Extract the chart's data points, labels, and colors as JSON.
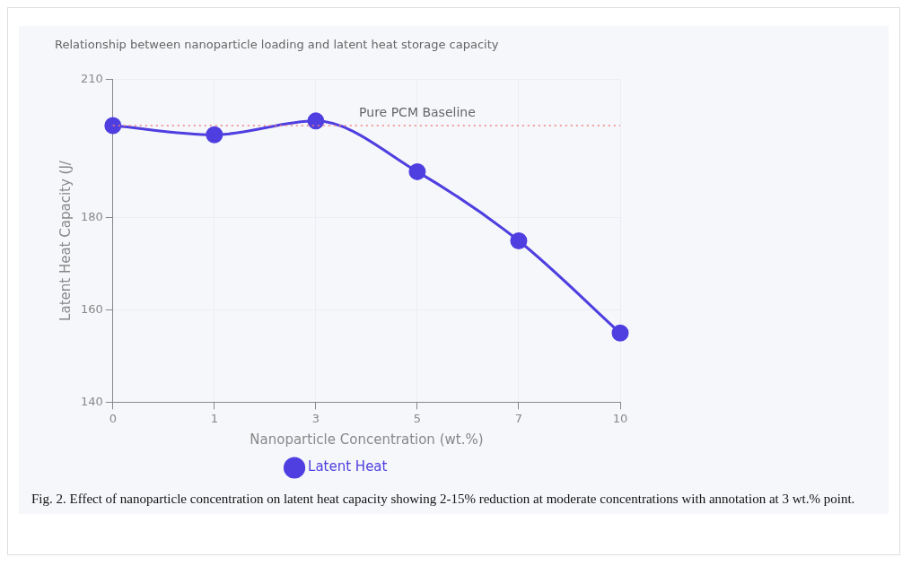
{
  "chart_data": {
    "type": "line",
    "title": "Relationship between nanoparticle loading and latent heat storage capacity",
    "xlabel": "Nanoparticle Concentration (wt.%)",
    "ylabel": "Latent Heat Capacity (J/",
    "categories": [
      "0",
      "1",
      "3",
      "5",
      "7",
      "10"
    ],
    "series": [
      {
        "name": "Latent Heat",
        "color": "#4f3ee0",
        "values": [
          200,
          198,
          201,
          190,
          175,
          155
        ]
      }
    ],
    "ylim": [
      140,
      210
    ],
    "yticks": [
      140,
      160,
      180,
      210
    ],
    "grid": true,
    "legend": "bottom",
    "marker": "circle",
    "line_style": "solid",
    "ref_lines": [
      {
        "axis": "y",
        "value": 200,
        "label": "Pure PCM Baseline",
        "color": "#f08080",
        "line_style": "dotted"
      }
    ],
    "annotations": [
      "Fig. 2. Effect of nanoparticle concentration on latent heat capacity showing 2-15% reduction at moderate concentrations with annotation at 3 wt.% point."
    ]
  }
}
